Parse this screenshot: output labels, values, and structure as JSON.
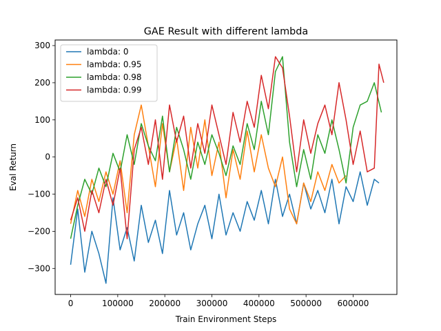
{
  "chart_data": {
    "type": "line",
    "title": "GAE Result with different lambda",
    "xlabel": "Train Environment Steps",
    "ylabel": "Eval Return",
    "xlim": [
      -33000,
      693000
    ],
    "ylim": [
      -370,
      315
    ],
    "xticks": [
      {
        "value": 0,
        "label": "0"
      },
      {
        "value": 100000,
        "label": "100000"
      },
      {
        "value": 200000,
        "label": "200000"
      },
      {
        "value": 300000,
        "label": "300000"
      },
      {
        "value": 400000,
        "label": "400000"
      },
      {
        "value": 500000,
        "label": "500000"
      },
      {
        "value": 600000,
        "label": "600000"
      }
    ],
    "yticks": [
      {
        "value": -300,
        "label": "−300"
      },
      {
        "value": -200,
        "label": "−200"
      },
      {
        "value": -100,
        "label": "−100"
      },
      {
        "value": 0,
        "label": "0"
      },
      {
        "value": 100,
        "label": "100"
      },
      {
        "value": 200,
        "label": "200"
      },
      {
        "value": 300,
        "label": "300"
      }
    ],
    "grid": false,
    "legend_position": "top-left",
    "series": [
      {
        "name": "lambda: 0",
        "color": "#1f77b4",
        "x": [
          0,
          15000,
          30000,
          45000,
          60000,
          75000,
          90000,
          105000,
          120000,
          135000,
          150000,
          165000,
          180000,
          195000,
          210000,
          225000,
          240000,
          255000,
          270000,
          285000,
          300000,
          315000,
          330000,
          345000,
          360000,
          375000,
          390000,
          405000,
          420000,
          435000,
          450000,
          465000,
          480000,
          495000,
          510000,
          525000,
          540000,
          555000,
          570000,
          585000,
          600000,
          615000,
          630000,
          645000,
          655000
        ],
        "y": [
          -290,
          -140,
          -310,
          -200,
          -260,
          -340,
          -110,
          -250,
          -190,
          -280,
          -130,
          -230,
          -170,
          -260,
          -90,
          -210,
          -150,
          -250,
          -180,
          -130,
          -220,
          -100,
          -210,
          -150,
          -200,
          -120,
          -170,
          -90,
          -180,
          -60,
          -160,
          -100,
          -180,
          -70,
          -140,
          -90,
          -150,
          -60,
          -180,
          -80,
          -120,
          -40,
          -130,
          -60,
          -70
        ]
      },
      {
        "name": "lambda: 0.95",
        "color": "#ff7f0e",
        "x": [
          0,
          15000,
          30000,
          45000,
          60000,
          75000,
          90000,
          105000,
          120000,
          135000,
          150000,
          165000,
          180000,
          195000,
          210000,
          225000,
          240000,
          255000,
          270000,
          285000,
          300000,
          315000,
          330000,
          345000,
          360000,
          375000,
          390000,
          405000,
          420000,
          435000,
          450000,
          465000,
          480000,
          495000,
          510000,
          525000,
          540000,
          555000,
          570000,
          585000
        ],
        "y": [
          -180,
          -90,
          -160,
          -60,
          -120,
          -40,
          -100,
          -10,
          -150,
          60,
          140,
          30,
          -80,
          90,
          -40,
          50,
          -90,
          80,
          -30,
          100,
          -50,
          40,
          -110,
          20,
          -60,
          70,
          -40,
          60,
          -30,
          -80,
          0,
          -140,
          -180,
          -70,
          -120,
          -40,
          -90,
          -20,
          -70,
          -50
        ]
      },
      {
        "name": "lambda: 0.98",
        "color": "#2ca02c",
        "x": [
          0,
          15000,
          30000,
          45000,
          60000,
          75000,
          90000,
          105000,
          120000,
          135000,
          150000,
          165000,
          180000,
          195000,
          210000,
          225000,
          240000,
          255000,
          270000,
          285000,
          300000,
          315000,
          330000,
          345000,
          360000,
          375000,
          390000,
          405000,
          420000,
          435000,
          450000,
          465000,
          480000,
          495000,
          510000,
          525000,
          540000,
          555000,
          570000,
          585000,
          600000,
          615000,
          630000,
          645000,
          660000
        ],
        "y": [
          -220,
          -130,
          -60,
          -100,
          -30,
          -80,
          10,
          -40,
          60,
          -20,
          90,
          30,
          -10,
          110,
          -40,
          80,
          20,
          -60,
          40,
          -20,
          60,
          10,
          -50,
          30,
          -20,
          90,
          20,
          150,
          60,
          230,
          270,
          40,
          -80,
          20,
          -60,
          60,
          10,
          100,
          20,
          -70,
          80,
          140,
          150,
          200,
          120
        ]
      },
      {
        "name": "lambda: 0.99",
        "color": "#d62728",
        "x": [
          0,
          15000,
          30000,
          45000,
          60000,
          75000,
          90000,
          105000,
          120000,
          135000,
          150000,
          165000,
          180000,
          195000,
          210000,
          225000,
          240000,
          255000,
          270000,
          285000,
          300000,
          315000,
          330000,
          345000,
          360000,
          375000,
          390000,
          405000,
          420000,
          435000,
          450000,
          465000,
          480000,
          495000,
          510000,
          525000,
          540000,
          555000,
          570000,
          585000,
          600000,
          615000,
          630000,
          645000,
          655000,
          665000
        ],
        "y": [
          -170,
          -110,
          -200,
          -90,
          -150,
          -60,
          -130,
          -30,
          -220,
          20,
          80,
          -20,
          100,
          -60,
          140,
          40,
          110,
          -30,
          90,
          10,
          140,
          60,
          -20,
          120,
          40,
          150,
          80,
          220,
          130,
          270,
          240,
          110,
          -40,
          100,
          10,
          90,
          140,
          60,
          200,
          100,
          -20,
          70,
          -40,
          -30,
          250,
          200
        ]
      }
    ]
  }
}
